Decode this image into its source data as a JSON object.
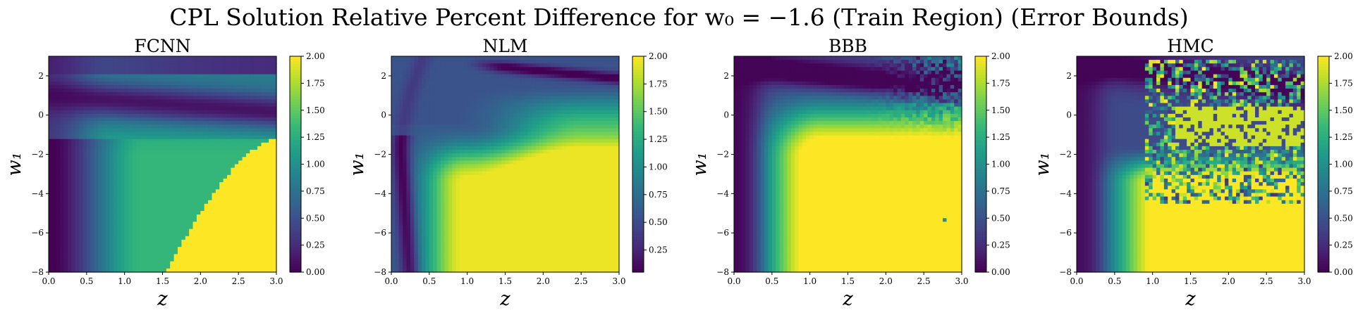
{
  "figure": {
    "title": "CPL Solution Relative Percent Difference for w₀ = −1.6 (Train Region) (Error Bounds)"
  },
  "colormap": {
    "name": "viridis",
    "stops": [
      "#440154",
      "#482878",
      "#3e4a89",
      "#31688e",
      "#26828e",
      "#1f9e89",
      "#35b779",
      "#6ece58",
      "#b5de2b",
      "#fde725"
    ]
  },
  "chart_data": [
    {
      "type": "heatmap",
      "title": "FCNN",
      "xlabel": "z",
      "ylabel": "w₁",
      "xlim": [
        0.0,
        3.0
      ],
      "ylim": [
        -8,
        3
      ],
      "xticks": [
        "0.0",
        "0.5",
        "1.0",
        "1.5",
        "2.0",
        "2.5",
        "3.0"
      ],
      "yticks": [
        "2",
        "0",
        "−2",
        "−4",
        "−6",
        "−8"
      ],
      "colorbar": {
        "min": 0.0,
        "max": 2.0,
        "ticks": [
          "2.00",
          "1.75",
          "1.50",
          "1.25",
          "1.00",
          "0.75",
          "0.50",
          "0.25",
          "0.00"
        ]
      },
      "pattern": "fcnn"
    },
    {
      "type": "heatmap",
      "title": "NLM",
      "xlabel": "z",
      "ylabel": "w₁",
      "xlim": [
        0.0,
        3.0
      ],
      "ylim": [
        -8,
        3
      ],
      "xticks": [
        "0.0",
        "0.5",
        "1.0",
        "1.5",
        "2.0",
        "2.5",
        "3.0"
      ],
      "yticks": [
        "2",
        "0",
        "−2",
        "−4",
        "−6",
        "−8"
      ],
      "colorbar": {
        "min": 0.05,
        "max": 2.0,
        "ticks": [
          "2.00",
          "1.75",
          "1.50",
          "1.25",
          "1.00",
          "0.75",
          "0.50",
          "0.25"
        ]
      },
      "pattern": "nlm"
    },
    {
      "type": "heatmap",
      "title": "BBB",
      "xlabel": "z",
      "ylabel": "w₁",
      "xlim": [
        0.0,
        3.0
      ],
      "ylim": [
        -8,
        3
      ],
      "xticks": [
        "0.0",
        "0.5",
        "1.0",
        "1.5",
        "2.0",
        "2.5",
        "3.0"
      ],
      "yticks": [
        "2",
        "0",
        "−2",
        "−4",
        "−6",
        "−8"
      ],
      "colorbar": {
        "min": 0.0,
        "max": 2.0,
        "ticks": [
          "2.00",
          "1.75",
          "1.50",
          "1.25",
          "1.00",
          "0.75",
          "0.50",
          "0.25",
          "0.00"
        ]
      },
      "pattern": "bbb"
    },
    {
      "type": "heatmap",
      "title": "HMC",
      "xlabel": "z",
      "ylabel": "w₁",
      "xlim": [
        0.0,
        3.0
      ],
      "ylim": [
        -8,
        3
      ],
      "xticks": [
        "0.0",
        "0.5",
        "1.0",
        "1.5",
        "2.0",
        "2.5",
        "3.0"
      ],
      "yticks": [
        "2",
        "0",
        "−2",
        "−4",
        "−6",
        "−8"
      ],
      "colorbar": {
        "min": 0.0,
        "max": 2.0,
        "ticks": [
          "2.00",
          "1.75",
          "1.50",
          "1.25",
          "1.00",
          "0.75",
          "0.50",
          "0.25",
          "0.00"
        ]
      },
      "pattern": "hmc"
    }
  ]
}
